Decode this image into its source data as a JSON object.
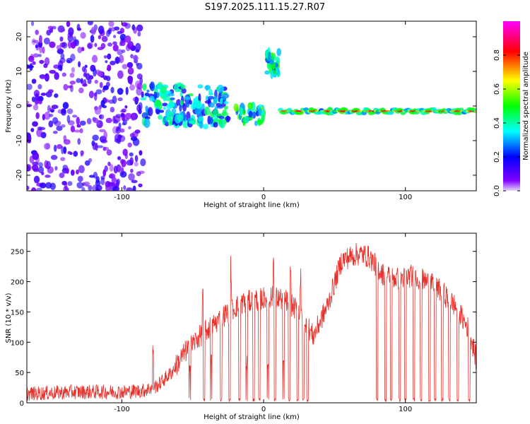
{
  "title": "S197.2025.111.15.27.R07",
  "chart_data": [
    {
      "type": "heatmap",
      "xlabel": "Height of straight line (km)",
      "ylabel": "Frequency (Hz)",
      "xlim": [
        -167,
        150
      ],
      "ylim": [
        -24.5,
        24.5
      ],
      "xticks": [
        -100,
        0,
        100
      ],
      "xtick_labels": [
        "-100",
        "0",
        "100"
      ],
      "yticks": [
        -20,
        -10,
        0,
        10,
        20
      ],
      "ytick_labels": [
        "-20",
        "-10",
        "0",
        "10",
        "20"
      ],
      "colorbar": {
        "label": "Normalized spectral amplitude",
        "range": [
          0,
          1
        ],
        "ticks": [
          0.0,
          0.2,
          0.4,
          0.6,
          0.8
        ],
        "tick_labels": [
          "0.0",
          "0.2",
          "0.4",
          "0.6",
          "0.8"
        ],
        "colors": [
          "#e8d8f8",
          "#8000ff",
          "#0000ff",
          "#00ffff",
          "#00ff00",
          "#ffff00",
          "#ff0000",
          "#ff00ff"
        ]
      },
      "features": [
        {
          "kind": "noise",
          "x": [
            -167,
            -85
          ],
          "freq": [
            -24.5,
            24.5
          ],
          "amplitude": 0.12
        },
        {
          "kind": "band",
          "x": [
            -85,
            -25
          ],
          "freq": [
            -6,
            6
          ],
          "amplitude": 0.3
        },
        {
          "kind": "streak",
          "x": [
            -20,
            0
          ],
          "freq": [
            -5,
            0
          ],
          "amplitude": 0.35
        },
        {
          "kind": "blob",
          "x": [
            2,
            11
          ],
          "freq": [
            9,
            16
          ],
          "amplitude": 0.35
        },
        {
          "kind": "line",
          "x": [
            12,
            150
          ],
          "freq": -1.5,
          "amplitude": 0.6
        }
      ]
    },
    {
      "type": "line",
      "xlabel": "Height of straight line (km)",
      "ylabel": "SNR (10 * v/v)",
      "xlim": [
        -167,
        150
      ],
      "ylim": [
        0,
        280
      ],
      "xticks": [
        -100,
        0,
        100
      ],
      "xtick_labels": [
        "-100",
        "0",
        "100"
      ],
      "yticks": [
        0,
        50,
        100,
        150,
        200,
        250
      ],
      "ytick_labels": [
        "0",
        "50",
        "100",
        "150",
        "200",
        "250"
      ],
      "color": "#e8302a",
      "baseline": {
        "x": [
          -167,
          -130,
          -100,
          -85,
          -75,
          -65,
          -55,
          -45,
          -35,
          -25,
          -15,
          -5,
          5,
          15,
          25,
          35,
          45,
          55,
          65,
          70,
          75,
          78,
          85,
          95,
          105,
          115,
          125,
          135,
          145,
          150
        ],
        "y": [
          15,
          18,
          18,
          20,
          28,
          50,
          85,
          110,
          130,
          150,
          165,
          170,
          175,
          170,
          150,
          110,
          160,
          235,
          245,
          245,
          240,
          230,
          210,
          205,
          210,
          200,
          185,
          160,
          120,
          70
        ]
      },
      "noise_amplitude": 12,
      "dropouts": [
        -52,
        -42,
        -37,
        -30,
        -24,
        -17,
        -12,
        -7,
        -3,
        3,
        8,
        14,
        18,
        24,
        28,
        31,
        80,
        86,
        90,
        96,
        100,
        106,
        111,
        117,
        121,
        126,
        131,
        137,
        145
      ],
      "spikes": [
        -78,
        -52,
        -43,
        -37,
        -23,
        -12,
        3,
        7,
        14,
        19,
        26
      ]
    }
  ]
}
